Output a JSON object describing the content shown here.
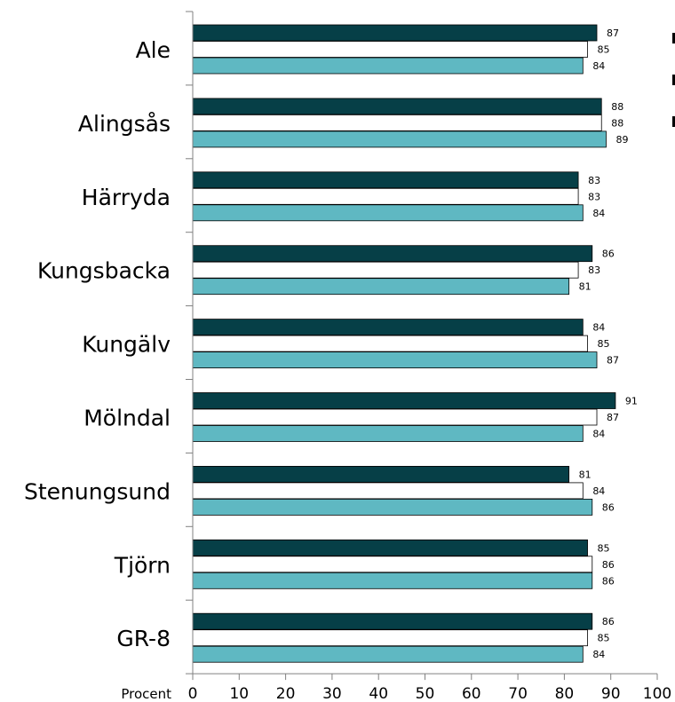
{
  "chart_data": {
    "type": "bar",
    "orientation": "horizontal",
    "categories": [
      "Ale",
      "Alingsås",
      "Härryda",
      "Kungsbacka",
      "Kungälv",
      "Mölndal",
      "Stenungsund",
      "Tjörn",
      "GR-8"
    ],
    "series": [
      {
        "values": [
          87,
          88,
          83,
          86,
          84,
          91,
          81,
          85,
          86
        ],
        "color": "#063f47"
      },
      {
        "values": [
          85,
          88,
          83,
          83,
          85,
          87,
          84,
          86,
          85
        ],
        "color": "#ffffff"
      },
      {
        "values": [
          84,
          89,
          84,
          81,
          87,
          84,
          86,
          86,
          84
        ],
        "color": "#5fb8c2"
      }
    ],
    "xlabel": "Procent",
    "xlim": [
      0,
      100
    ],
    "xticks": [
      0,
      10,
      20,
      30,
      40,
      50,
      60,
      70,
      80,
      90,
      100
    ],
    "data_labels": true,
    "legend_placement": "right (cut off)"
  }
}
